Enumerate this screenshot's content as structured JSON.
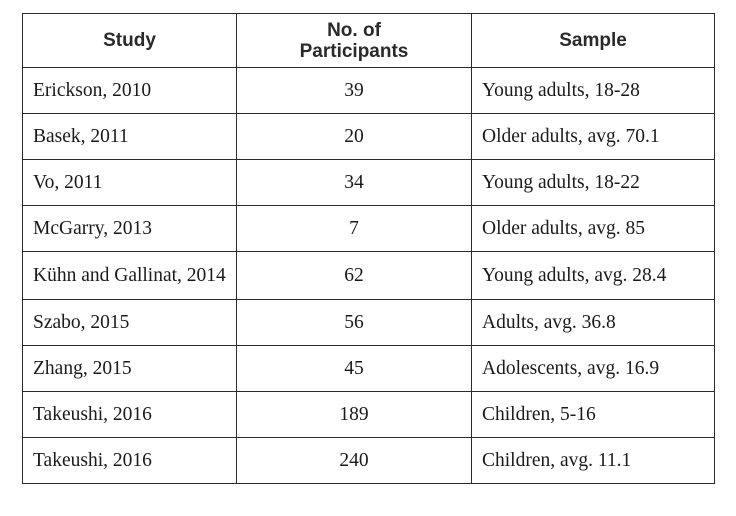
{
  "table": {
    "headers": {
      "study": "Study",
      "participants_line1": "No. of",
      "participants_line2": "Participants",
      "sample": "Sample"
    },
    "rows": [
      {
        "study": "Erickson, 2010",
        "participants": "39",
        "sample": "Young adults, 18-28"
      },
      {
        "study": "Basek, 2011",
        "participants": "20",
        "sample": "Older adults, avg. 70.1"
      },
      {
        "study": "Vo, 2011",
        "participants": "34",
        "sample": "Young adults, 18-22"
      },
      {
        "study": "McGarry, 2013",
        "participants": "7",
        "sample": "Older adults, avg. 85"
      },
      {
        "study": "Kühn and Gallinat, 2014",
        "participants": "62",
        "sample": "Young adults, avg. 28.4"
      },
      {
        "study": "Szabo, 2015",
        "participants": "56",
        "sample": "Adults, avg. 36.8"
      },
      {
        "study": "Zhang, 2015",
        "participants": "45",
        "sample": "Adolescents, avg. 16.9"
      },
      {
        "study": "Takeushi, 2016",
        "participants": "189",
        "sample": "Children, 5-16"
      },
      {
        "study": "Takeushi, 2016",
        "participants": "240",
        "sample": "Children, avg. 11.1"
      }
    ]
  }
}
